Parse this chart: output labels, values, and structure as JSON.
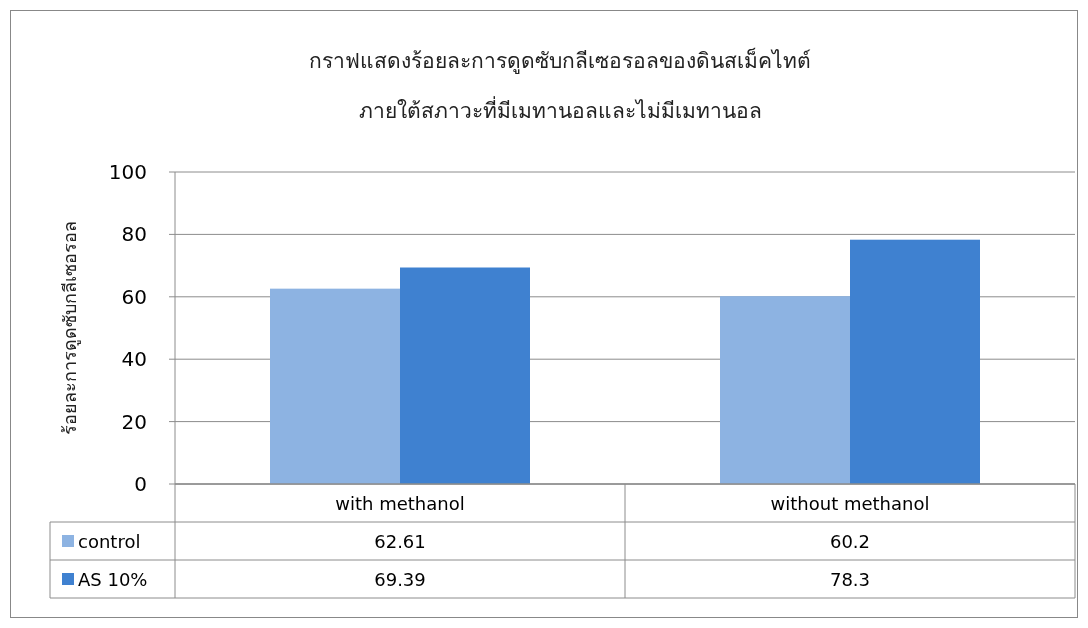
{
  "chart_data": {
    "type": "bar",
    "title": "กราฟแสดงร้อยละการดูดซับกลีเซอรอลของดินสเม็คไทต์",
    "subtitle": "ภายใต้สภาวะที่มีเมทานอลและไม่มีเมทานอล",
    "ylabel": "ร้อยละการดูดซับกลีเซอรอล",
    "categories": [
      "with methanol",
      "without methanol"
    ],
    "series": [
      {
        "name": "control",
        "color": "#8db3e2",
        "values": [
          62.61,
          60.2
        ]
      },
      {
        "name": "AS 10%",
        "color": "#3f81d0",
        "values": [
          69.39,
          78.3
        ]
      }
    ],
    "ylim": [
      0,
      100
    ],
    "yticks": [
      0,
      20,
      40,
      60,
      80,
      100
    ],
    "grid": "y",
    "data_labels": true,
    "legend": "bottom"
  }
}
